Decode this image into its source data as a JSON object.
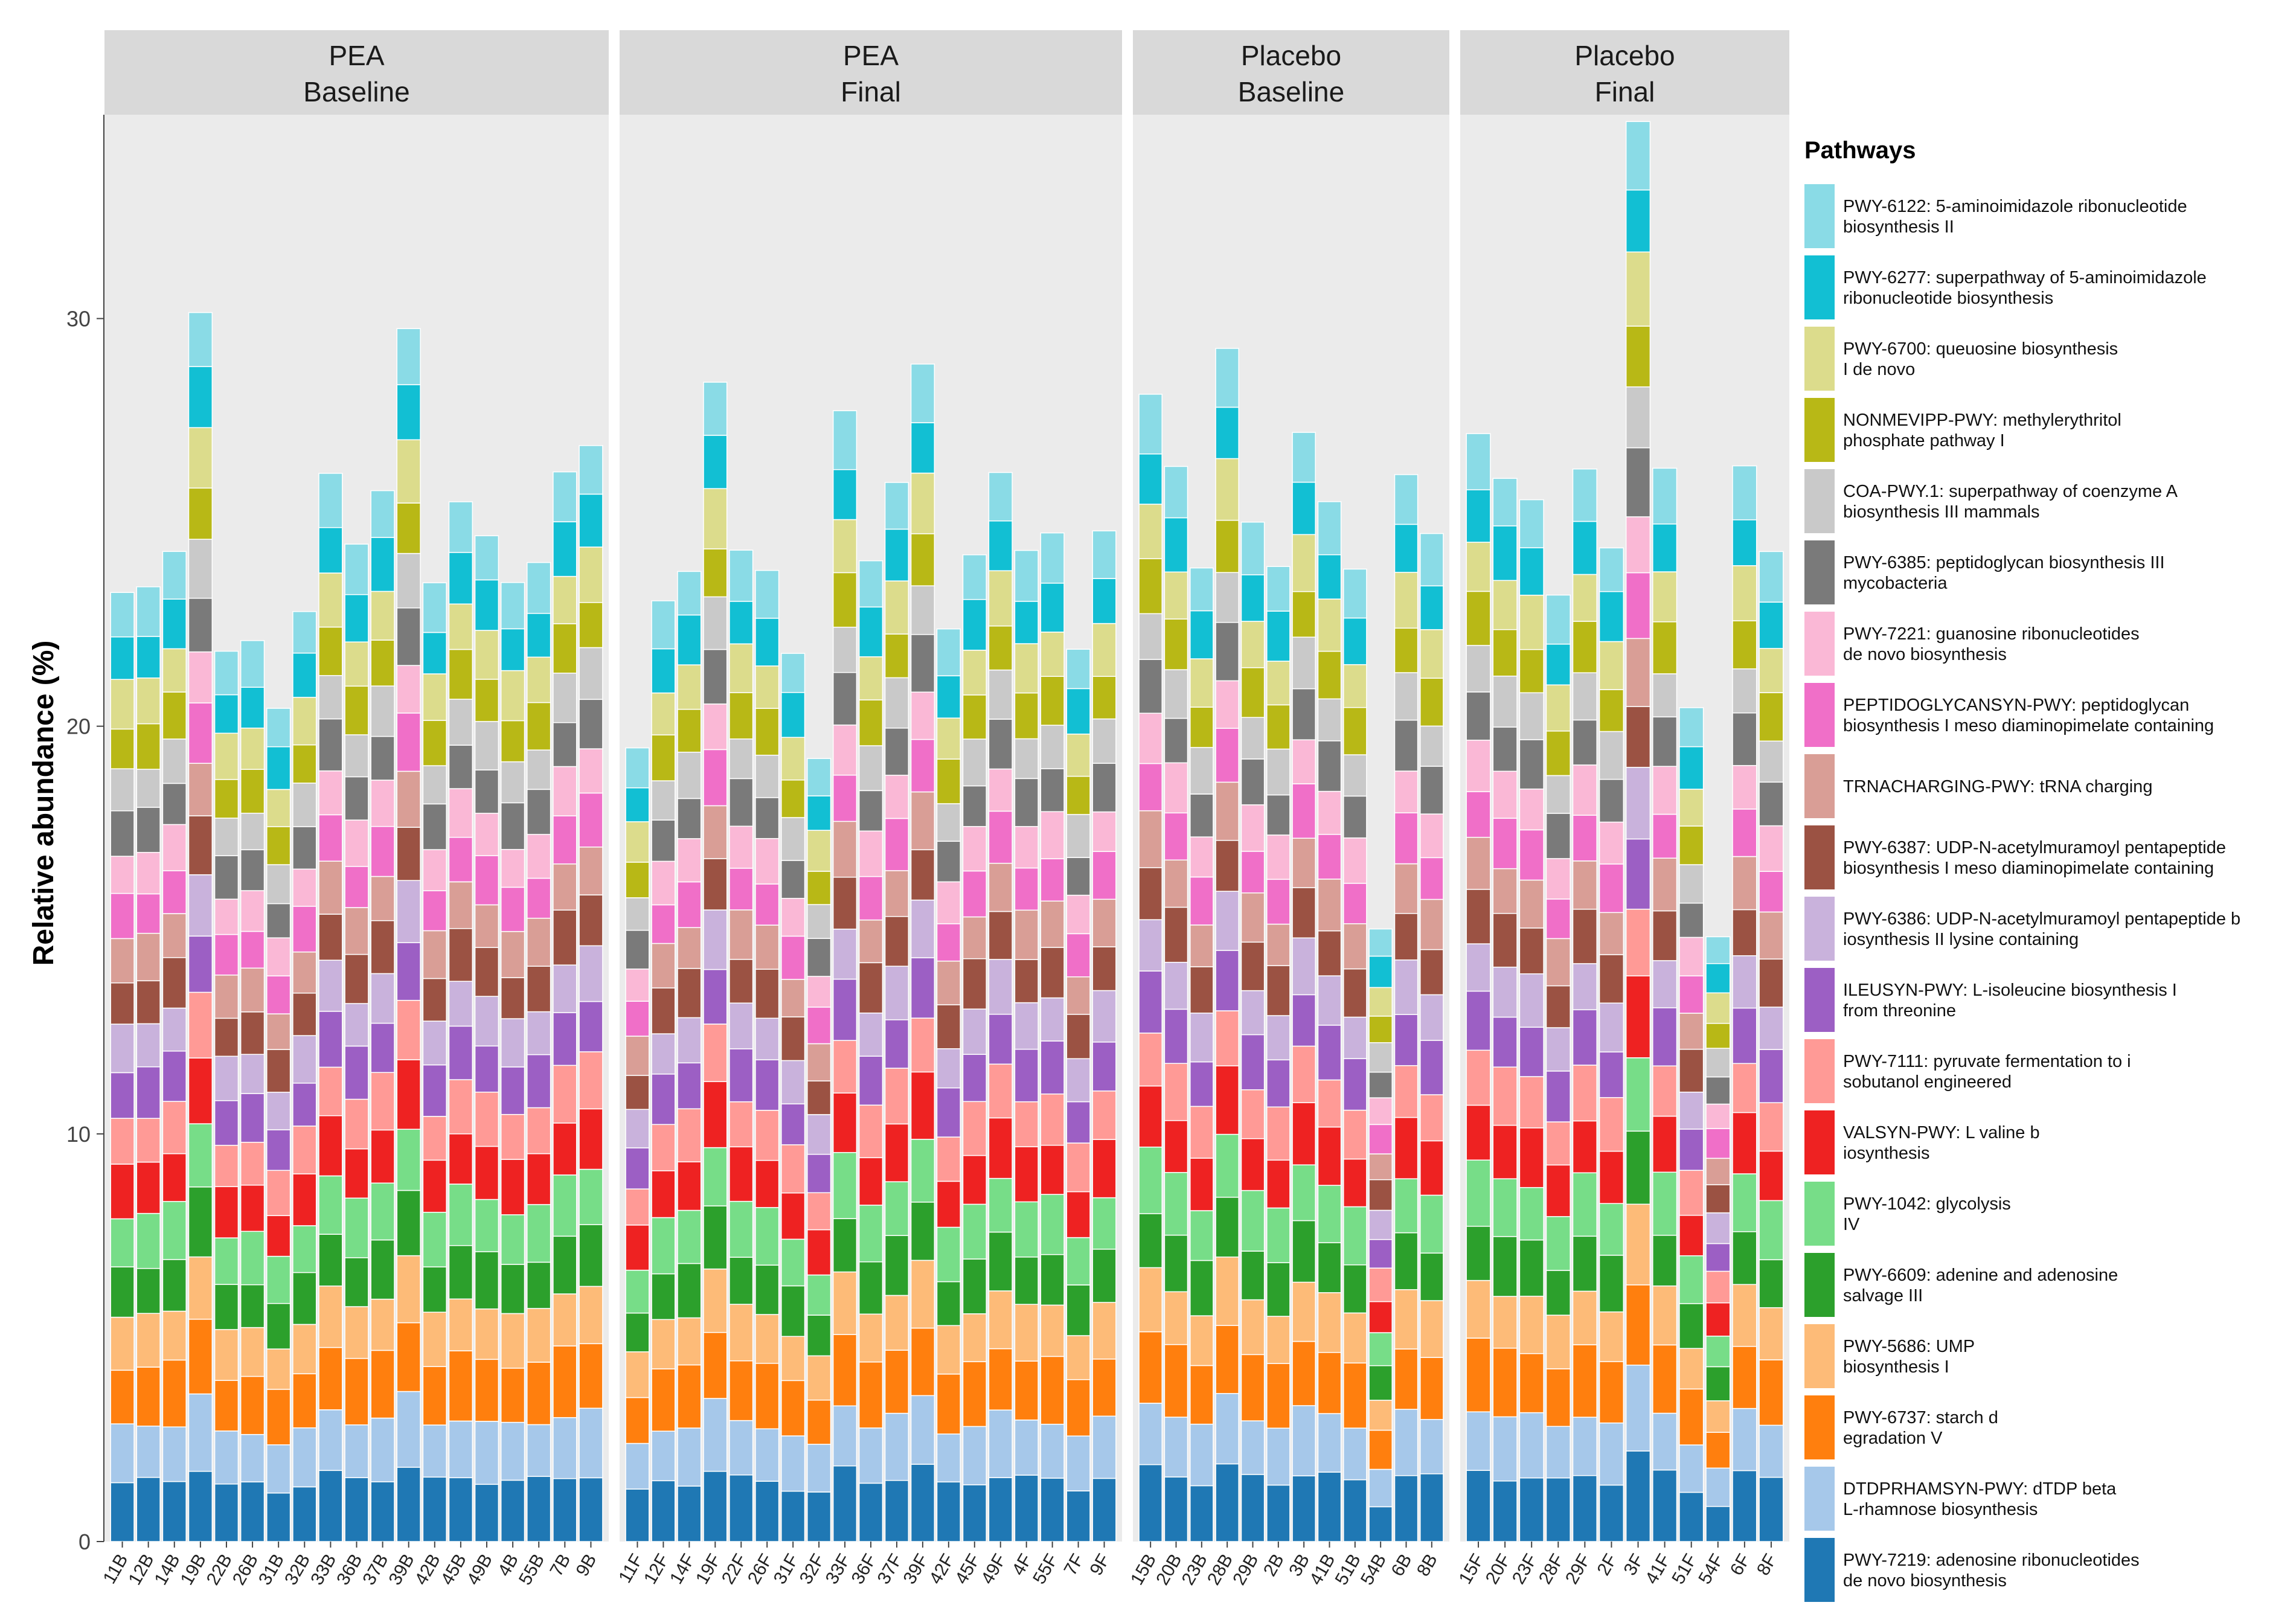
{
  "chart_data": {
    "type": "bar",
    "stacked": true,
    "ylabel": "Relative abundance (%)",
    "ylim": [
      0,
      35
    ],
    "yticks": [
      0,
      10,
      20,
      30
    ],
    "grid": false,
    "legend_position": "right",
    "legend_title": "Pathways",
    "facets": [
      {
        "title_line1": "PEA",
        "title_line2": "Baseline",
        "samples": [
          "11B",
          "12B",
          "14B",
          "19B",
          "22B",
          "26B",
          "31B",
          "32B",
          "33B",
          "36B",
          "37B",
          "39B",
          "42B",
          "45B",
          "49B",
          "4B",
          "55B",
          "7B",
          "9B"
        ],
        "totals": [
          23.3,
          23.3,
          24.3,
          30.3,
          21.8,
          22.0,
          20.5,
          22.9,
          26.1,
          24.4,
          25.9,
          29.8,
          23.4,
          25.5,
          24.8,
          23.5,
          23.9,
          26.3,
          27.0
        ]
      },
      {
        "title_line1": "PEA",
        "title_line2": "Final",
        "samples": [
          "11F",
          "12F",
          "14F",
          "19F",
          "22F",
          "26F",
          "31F",
          "32F",
          "33F",
          "36F",
          "37F",
          "39F",
          "42F",
          "45F",
          "49F",
          "4F",
          "55F",
          "7F",
          "9F"
        ],
        "totals": [
          19.4,
          23.0,
          23.9,
          28.5,
          24.2,
          23.8,
          21.9,
          19.2,
          27.6,
          24.1,
          26.1,
          28.8,
          22.3,
          24.3,
          26.3,
          24.2,
          24.7,
          22.0,
          24.8
        ]
      },
      {
        "title_line1": "Placebo",
        "title_line2": "Baseline",
        "samples": [
          "15B",
          "20B",
          "23B",
          "28B",
          "29B",
          "2B",
          "3B",
          "41B",
          "51B",
          "54B",
          "6B",
          "8B"
        ],
        "totals": [
          28.0,
          26.4,
          24.0,
          29.2,
          24.9,
          24.0,
          27.3,
          25.4,
          23.8,
          15.1,
          26.2,
          24.6
        ]
      },
      {
        "title_line1": "Placebo",
        "title_line2": "Final",
        "samples": [
          "15F",
          "20F",
          "23F",
          "28F",
          "29F",
          "2F",
          "3F",
          "41F",
          "51F",
          "54F",
          "6F",
          "8F"
        ],
        "totals": [
          27.1,
          26.2,
          25.6,
          23.1,
          26.3,
          24.5,
          34.8,
          26.2,
          20.5,
          14.9,
          26.3,
          24.2
        ]
      }
    ],
    "series": [
      {
        "name": "PWY-7219: adenosine ribonucleotides de novo biosynthesis",
        "legend_lines": [
          "PWY-7219: adenosine ribonucleotides",
          "de novo biosynthesis"
        ],
        "color": "#1f78b4",
        "share": 0.062
      },
      {
        "name": "DTDPRHAMSYN-PWY: dTDP beta L-rhamnose biosynthesis",
        "legend_lines": [
          "DTDPRHAMSYN-PWY: dTDP beta",
          "L-rhamnose biosynthesis"
        ],
        "color": "#a6c8ea",
        "share": 0.058
      },
      {
        "name": "PWY-6737: starch degradation V",
        "legend_lines": [
          "PWY-6737: starch d",
          "egradation V"
        ],
        "color": "#ff7f0e",
        "share": 0.062
      },
      {
        "name": "PWY-5686: UMP biosynthesis I",
        "legend_lines": [
          "PWY-5686: UMP",
          "biosynthesis I"
        ],
        "color": "#fdbb78",
        "share": 0.053
      },
      {
        "name": "PWY-6609: adenine and adenosine salvage III",
        "legend_lines": [
          "PWY-6609: adenine and adenosine",
          "salvage III"
        ],
        "color": "#2ca02c",
        "share": 0.052
      },
      {
        "name": "PWY-1042: glycolysis IV",
        "legend_lines": [
          "PWY-1042: glycolysis",
          "IV"
        ],
        "color": "#77dd88",
        "share": 0.055
      },
      {
        "name": "VALSYN-PWY: L valine biosynthesis",
        "legend_lines": [
          "VALSYN-PWY: L valine b",
          "iosynthesis"
        ],
        "color": "#ee2222",
        "share": 0.053
      },
      {
        "name": "PWY-7111: pyruvate fermentation to isobutanol engineered",
        "legend_lines": [
          "PWY-7111: pyruvate fermentation to i",
          "sobutanol engineered"
        ],
        "color": "#ff9a96",
        "share": 0.05
      },
      {
        "name": "ILEUSYN-PWY: L-isoleucine biosynthesis I from threonine",
        "legend_lines": [
          "ILEUSYN-PWY: L-isoleucine biosynthesis I",
          "from threonine"
        ],
        "color": "#9c5fc4",
        "share": 0.05
      },
      {
        "name": "PWY-6386: UDP-N-acetylmuramoyl pentapeptide biosynthesis II lysine containing",
        "legend_lines": [
          "PWY-6386: UDP-N-acetylmuramoyl pentapeptide b",
          "iosynthesis II lysine containing"
        ],
        "color": "#c9b2dc",
        "share": 0.047
      },
      {
        "name": "PWY-6387: UDP-N-acetylmuramoyl pentapeptide biosynthesis I meso diaminopimelate containing",
        "legend_lines": [
          "PWY-6387: UDP-N-acetylmuramoyl pentapeptide",
          "biosynthesis I meso diaminopimelate containing"
        ],
        "color": "#9b5243",
        "share": 0.047
      },
      {
        "name": "TRNACHARGING-PWY: tRNA charging",
        "legend_lines": [
          "TRNACHARGING-PWY: tRNA charging"
        ],
        "color": "#d99e96",
        "share": 0.046
      },
      {
        "name": "PEPTIDOGLYCANSYN-PWY: peptidoglycan biosynthesis I meso diaminopimelate containing",
        "legend_lines": [
          "PEPTIDOGLYCANSYN-PWY: peptidoglycan",
          "biosynthesis I meso diaminopimelate containing"
        ],
        "color": "#f06fc8",
        "share": 0.045
      },
      {
        "name": "PWY-7221: guanosine ribonucleotides de novo biosynthesis",
        "legend_lines": [
          "PWY-7221: guanosine ribonucleotides",
          "de novo biosynthesis"
        ],
        "color": "#fab8d6",
        "share": 0.043
      },
      {
        "name": "PWY-6385: peptidoglycan biosynthesis III mycobacteria",
        "legend_lines": [
          "PWY-6385: peptidoglycan biosynthesis III",
          "mycobacteria"
        ],
        "color": "#7a7a7a",
        "share": 0.045
      },
      {
        "name": "COA-PWY.1: superpathway of coenzyme A biosynthesis III mammals",
        "legend_lines": [
          "COA-PWY.1: superpathway of coenzyme A",
          "biosynthesis III mammals"
        ],
        "color": "#c9c9c9",
        "share": 0.044
      },
      {
        "name": "NONMEVIPP-PWY: methylerythritol phosphate pathway I",
        "legend_lines": [
          "NONMEVIPP-PWY: methylerythritol",
          "phosphate pathway I"
        ],
        "color": "#b8b816",
        "share": 0.045
      },
      {
        "name": "PWY-6700: queuosine biosynthesis I de novo",
        "legend_lines": [
          "PWY-6700: queuosine biosynthesis",
          "I de novo"
        ],
        "color": "#dcdc8c",
        "share": 0.048
      },
      {
        "name": "PWY-6277: superpathway of 5-aminoimidazole ribonucleotide biosynthesis",
        "legend_lines": [
          "PWY-6277: superpathway of 5-aminoimidazole",
          "ribonucleotide biosynthesis"
        ],
        "color": "#12bfd3",
        "share": 0.047
      },
      {
        "name": "PWY-6122: 5-aminoimidazole ribonucleotide biosynthesis II",
        "legend_lines": [
          "PWY-6122: 5-aminoimidazole ribonucleotide",
          "biosynthesis II"
        ],
        "color": "#8adbe6",
        "share": 0.048
      }
    ]
  }
}
